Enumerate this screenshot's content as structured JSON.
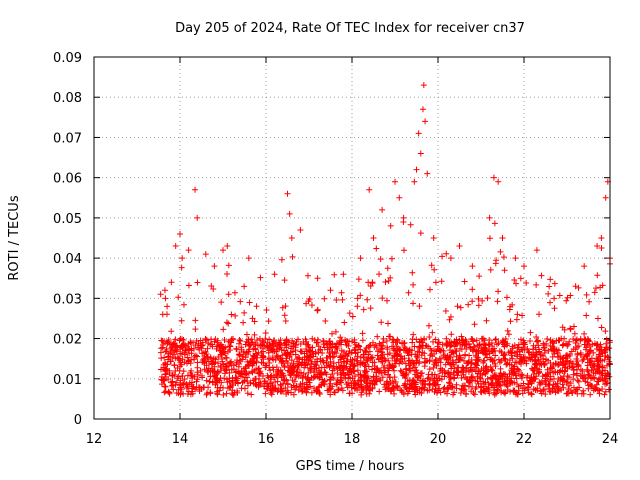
{
  "chart_data": {
    "type": "scatter",
    "title": "Day 205 of 2024, Rate Of TEC Index for receiver cn37",
    "xlabel": "GPS time / hours",
    "ylabel": "ROTI / TECUs",
    "xlim": [
      12,
      24
    ],
    "ylim": [
      0,
      0.09
    ],
    "x_ticks": [
      "12",
      "14",
      "16",
      "18",
      "20",
      "22",
      "24"
    ],
    "y_ticks": [
      "0",
      "0.01",
      "0.02",
      "0.03",
      "0.04",
      "0.05",
      "0.06",
      "0.07",
      "0.08",
      "0.09"
    ],
    "grid": true,
    "marker": "+",
    "color": "#ff0000",
    "series": [
      {
        "name": "ROTI",
        "note": "dense cloud of points, 13.5–24 h; baseline ~0.005–0.025, selected prominent peaks listed",
        "points": [
          [
            13.55,
            0.031
          ],
          [
            13.6,
            0.026
          ],
          [
            13.65,
            0.032
          ],
          [
            13.7,
            0.028
          ],
          [
            13.8,
            0.034
          ],
          [
            13.9,
            0.043
          ],
          [
            14.0,
            0.046
          ],
          [
            14.05,
            0.04
          ],
          [
            14.2,
            0.042
          ],
          [
            14.35,
            0.057
          ],
          [
            14.4,
            0.05
          ],
          [
            14.6,
            0.041
          ],
          [
            14.8,
            0.038
          ],
          [
            15.0,
            0.042
          ],
          [
            15.1,
            0.043
          ],
          [
            15.6,
            0.04
          ],
          [
            16.2,
            0.036
          ],
          [
            16.5,
            0.056
          ],
          [
            16.55,
            0.051
          ],
          [
            16.6,
            0.045
          ],
          [
            16.8,
            0.047
          ],
          [
            17.2,
            0.035
          ],
          [
            17.5,
            0.032
          ],
          [
            17.8,
            0.036
          ],
          [
            18.2,
            0.04
          ],
          [
            18.4,
            0.057
          ],
          [
            18.5,
            0.045
          ],
          [
            18.7,
            0.052
          ],
          [
            18.9,
            0.048
          ],
          [
            19.0,
            0.059
          ],
          [
            19.1,
            0.055
          ],
          [
            19.2,
            0.05
          ],
          [
            19.45,
            0.059
          ],
          [
            19.5,
            0.062
          ],
          [
            19.55,
            0.071
          ],
          [
            19.6,
            0.066
          ],
          [
            19.65,
            0.077
          ],
          [
            19.67,
            0.083
          ],
          [
            19.7,
            0.074
          ],
          [
            19.75,
            0.061
          ],
          [
            19.9,
            0.045
          ],
          [
            20.3,
            0.04
          ],
          [
            20.5,
            0.043
          ],
          [
            20.8,
            0.038
          ],
          [
            21.2,
            0.05
          ],
          [
            21.3,
            0.06
          ],
          [
            21.4,
            0.059
          ],
          [
            21.5,
            0.045
          ],
          [
            21.8,
            0.04
          ],
          [
            22.0,
            0.038
          ],
          [
            22.3,
            0.042
          ],
          [
            22.7,
            0.03
          ],
          [
            23.2,
            0.033
          ],
          [
            23.4,
            0.038
          ],
          [
            23.7,
            0.043
          ],
          [
            23.8,
            0.045
          ],
          [
            23.9,
            0.055
          ],
          [
            23.95,
            0.059
          ],
          [
            24.0,
            0.04
          ]
        ]
      }
    ]
  }
}
